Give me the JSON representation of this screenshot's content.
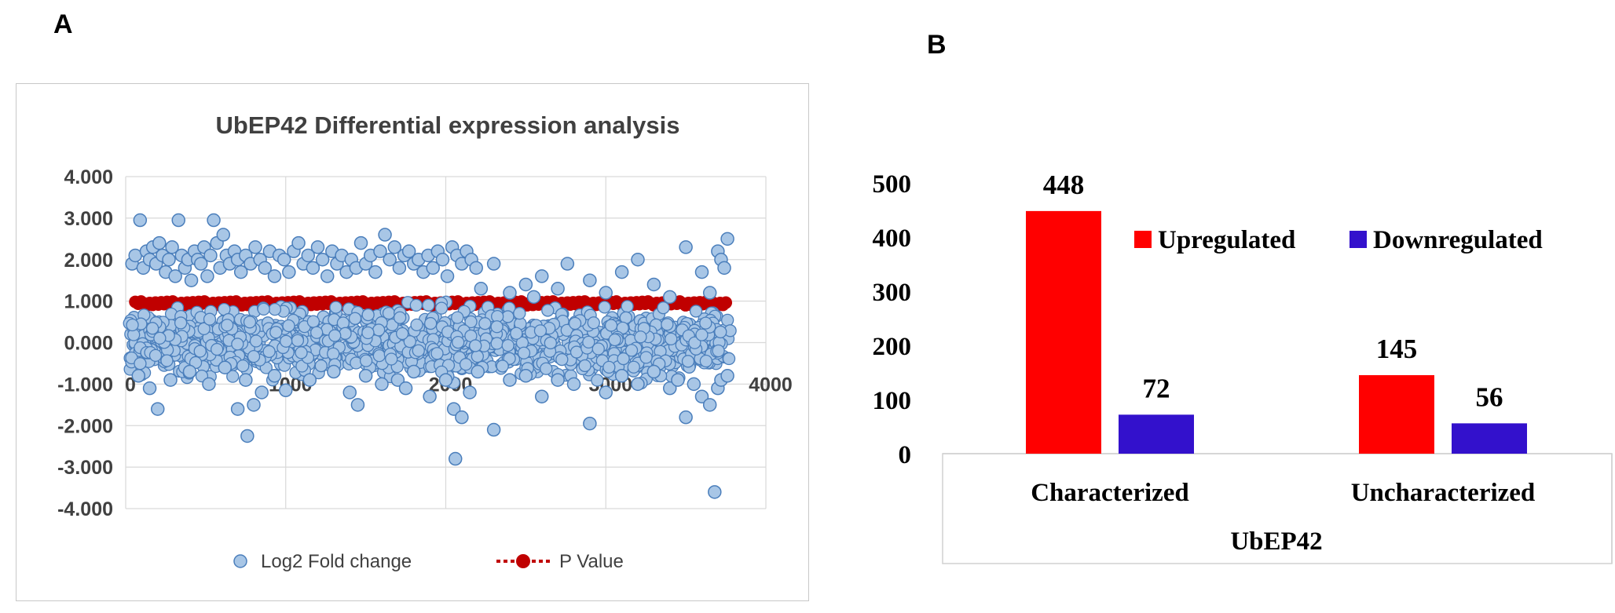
{
  "panels": {
    "a": "A",
    "b": "B"
  },
  "chart_data": [
    {
      "type": "scatter",
      "title": "UbEP42 Differential expression analysis",
      "xlim": [
        0,
        4000
      ],
      "ylim": [
        -4,
        4
      ],
      "x_ticks": [
        "0",
        "1000",
        "2000",
        "3000",
        "4000"
      ],
      "y_ticks": [
        "4.000",
        "3.000",
        "2.000",
        "1.000",
        "0.000",
        "-1.000",
        "-2.000",
        "-3.000",
        "-4.000"
      ],
      "grid": true,
      "legend_position": "bottom",
      "series": [
        {
          "name": "Log2 Fold change",
          "color": "#a8c6e6",
          "points": [
            [
              40,
              1.9
            ],
            [
              60,
              2.1
            ],
            [
              90,
              2.95
            ],
            [
              110,
              1.8
            ],
            [
              130,
              2.2
            ],
            [
              150,
              2.0
            ],
            [
              170,
              2.3
            ],
            [
              190,
              1.9
            ],
            [
              210,
              2.4
            ],
            [
              230,
              2.1
            ],
            [
              250,
              1.7
            ],
            [
              270,
              2.0
            ],
            [
              290,
              2.3
            ],
            [
              310,
              1.6
            ],
            [
              330,
              2.95
            ],
            [
              350,
              2.1
            ],
            [
              370,
              1.8
            ],
            [
              390,
              2.0
            ],
            [
              410,
              1.5
            ],
            [
              430,
              2.2
            ],
            [
              450,
              2.0
            ],
            [
              470,
              1.9
            ],
            [
              490,
              2.3
            ],
            [
              510,
              1.6
            ],
            [
              530,
              2.1
            ],
            [
              550,
              2.95
            ],
            [
              570,
              2.4
            ],
            [
              590,
              1.8
            ],
            [
              610,
              2.6
            ],
            [
              630,
              2.1
            ],
            [
              650,
              1.9
            ],
            [
              680,
              2.2
            ],
            [
              700,
              2.0
            ],
            [
              720,
              1.7
            ],
            [
              750,
              2.1
            ],
            [
              780,
              1.9
            ],
            [
              810,
              2.3
            ],
            [
              840,
              2.0
            ],
            [
              870,
              1.8
            ],
            [
              900,
              2.2
            ],
            [
              930,
              1.6
            ],
            [
              960,
              2.1
            ],
            [
              990,
              2.0
            ],
            [
              1020,
              1.7
            ],
            [
              1050,
              2.2
            ],
            [
              1080,
              2.4
            ],
            [
              1110,
              1.9
            ],
            [
              1140,
              2.1
            ],
            [
              1170,
              1.8
            ],
            [
              1200,
              2.3
            ],
            [
              1230,
              2.0
            ],
            [
              1260,
              1.6
            ],
            [
              1290,
              2.2
            ],
            [
              1320,
              1.9
            ],
            [
              1350,
              2.1
            ],
            [
              1380,
              1.7
            ],
            [
              1410,
              2.0
            ],
            [
              1440,
              1.8
            ],
            [
              1470,
              2.4
            ],
            [
              1500,
              1.9
            ],
            [
              1530,
              2.1
            ],
            [
              1560,
              1.7
            ],
            [
              1590,
              2.2
            ],
            [
              1620,
              2.6
            ],
            [
              1650,
              2.0
            ],
            [
              1680,
              2.3
            ],
            [
              1710,
              1.8
            ],
            [
              1740,
              2.1
            ],
            [
              1770,
              2.2
            ],
            [
              1800,
              1.9
            ],
            [
              1830,
              2.0
            ],
            [
              1860,
              1.7
            ],
            [
              1890,
              2.1
            ],
            [
              1920,
              1.8
            ],
            [
              1950,
              2.2
            ],
            [
              1980,
              2.0
            ],
            [
              2010,
              1.6
            ],
            [
              2040,
              2.3
            ],
            [
              2070,
              2.1
            ],
            [
              2100,
              1.9
            ],
            [
              2130,
              2.2
            ],
            [
              2160,
              2.0
            ],
            [
              2190,
              1.8
            ],
            [
              2220,
              1.3
            ],
            [
              2300,
              1.9
            ],
            [
              2400,
              1.2
            ],
            [
              2500,
              1.4
            ],
            [
              2550,
              1.1
            ],
            [
              2600,
              1.6
            ],
            [
              2700,
              1.3
            ],
            [
              2760,
              1.9
            ],
            [
              2900,
              1.5
            ],
            [
              3000,
              1.2
            ],
            [
              3100,
              1.7
            ],
            [
              3200,
              2.0
            ],
            [
              3300,
              1.4
            ],
            [
              3400,
              1.1
            ],
            [
              3500,
              2.3
            ],
            [
              3600,
              1.7
            ],
            [
              3650,
              1.2
            ],
            [
              3700,
              2.2
            ],
            [
              3720,
              2.0
            ],
            [
              3740,
              1.8
            ],
            [
              3760,
              2.5
            ],
            [
              80,
              -0.8
            ],
            [
              150,
              -1.1
            ],
            [
              200,
              -1.6
            ],
            [
              280,
              -0.9
            ],
            [
              400,
              -0.7
            ],
            [
              520,
              -1.0
            ],
            [
              620,
              -0.6
            ],
            [
              700,
              -1.6
            ],
            [
              750,
              -0.9
            ],
            [
              760,
              -2.25
            ],
            [
              800,
              -1.5
            ],
            [
              850,
              -1.2
            ],
            [
              930,
              -0.8
            ],
            [
              1000,
              -1.15
            ],
            [
              1150,
              -0.9
            ],
            [
              1300,
              -0.7
            ],
            [
              1400,
              -1.2
            ],
            [
              1450,
              -1.5
            ],
            [
              1500,
              -0.8
            ],
            [
              1600,
              -1.0
            ],
            [
              1700,
              -0.9
            ],
            [
              1750,
              -1.1
            ],
            [
              1800,
              -0.7
            ],
            [
              1900,
              -1.3
            ],
            [
              2000,
              -0.9
            ],
            [
              2050,
              -1.6
            ],
            [
              2060,
              -2.8
            ],
            [
              2100,
              -1.8
            ],
            [
              2150,
              -1.2
            ],
            [
              2200,
              -0.7
            ],
            [
              2300,
              -2.1
            ],
            [
              2400,
              -0.9
            ],
            [
              2500,
              -0.8
            ],
            [
              2600,
              -1.3
            ],
            [
              2700,
              -0.9
            ],
            [
              2800,
              -1.0
            ],
            [
              2900,
              -1.95
            ],
            [
              3000,
              -1.2
            ],
            [
              3100,
              -0.8
            ],
            [
              3200,
              -1.0
            ],
            [
              3300,
              -0.7
            ],
            [
              3400,
              -1.1
            ],
            [
              3450,
              -0.9
            ],
            [
              3500,
              -1.8
            ],
            [
              3550,
              -1.0
            ],
            [
              3600,
              -1.3
            ],
            [
              3650,
              -1.5
            ],
            [
              3680,
              -3.6
            ],
            [
              3700,
              -1.1
            ],
            [
              3720,
              -0.9
            ],
            [
              3760,
              -0.8
            ]
          ]
        },
        {
          "name": "P Value",
          "color": "#c00000",
          "points": [
            [
              60,
              0.95
            ],
            [
              200,
              0.9
            ],
            [
              350,
              0.95
            ],
            [
              500,
              0.9
            ],
            [
              650,
              0.92
            ],
            [
              800,
              0.95
            ],
            [
              950,
              0.9
            ],
            [
              1100,
              0.95
            ],
            [
              1250,
              0.9
            ],
            [
              1400,
              0.95
            ],
            [
              1550,
              0.92
            ],
            [
              1700,
              0.95
            ],
            [
              1850,
              0.9
            ],
            [
              2000,
              0.95
            ],
            [
              2150,
              0.92
            ],
            [
              2300,
              0.95
            ],
            [
              2450,
              0.9
            ],
            [
              2600,
              0.95
            ],
            [
              2750,
              0.92
            ],
            [
              2900,
              0.95
            ],
            [
              3050,
              0.9
            ],
            [
              3200,
              0.95
            ],
            [
              3350,
              0.92
            ],
            [
              3500,
              0.95
            ],
            [
              3650,
              0.9
            ],
            [
              3760,
              0.95
            ]
          ]
        }
      ]
    },
    {
      "type": "bar",
      "categories": [
        "Characterized",
        "Uncharacterized"
      ],
      "xlabel": "UbEP42",
      "ylim": [
        0,
        500
      ],
      "y_ticks": [
        "500",
        "400",
        "300",
        "200",
        "100",
        "0"
      ],
      "legend_position": "top-right",
      "series": [
        {
          "name": "Upregulated",
          "color": "#ff0000",
          "values": [
            448,
            145
          ]
        },
        {
          "name": "Downregulated",
          "color": "#3311cc",
          "values": [
            72,
            56
          ]
        }
      ]
    }
  ]
}
